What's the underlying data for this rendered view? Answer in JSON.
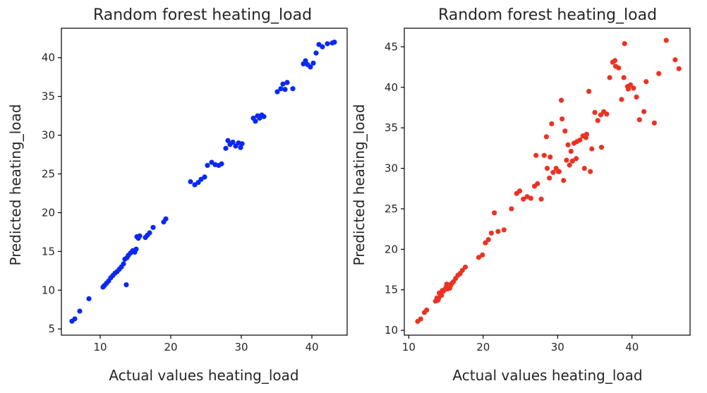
{
  "colors": {
    "left_points": "#0a28f5",
    "right_points": "#ea3323",
    "text": "#262626"
  },
  "chart_data": [
    {
      "type": "scatter",
      "title": "Random forest heating_load",
      "xlabel": "Actual values heating_load",
      "ylabel": "Predicted heating_load",
      "xlim": [
        4.5,
        45
      ],
      "ylim": [
        4.2,
        43.8
      ],
      "xticks": [
        10,
        20,
        30,
        40
      ],
      "yticks": [
        5,
        10,
        15,
        20,
        25,
        30,
        35,
        40
      ],
      "xtick_labels": [
        "10",
        "20",
        "30",
        "40"
      ],
      "ytick_labels": [
        "5",
        "10",
        "15",
        "20",
        "25",
        "30",
        "35",
        "40"
      ],
      "grid": false,
      "series": [
        {
          "color": "#0a28f5",
          "x": [
            6.0,
            6.4,
            7.1,
            8.4,
            10.4,
            10.6,
            10.9,
            11.2,
            11.5,
            11.8,
            12.1,
            12.4,
            12.7,
            13.0,
            13.3,
            13.5,
            13.8,
            14.0,
            14.3,
            14.6,
            14.9,
            15.1,
            15.4,
            15.6,
            15.2,
            16.4,
            16.7,
            17.0,
            17.5,
            19.0,
            19.3,
            13.7,
            22.8,
            23.4,
            23.9,
            24.3,
            24.8,
            25.2,
            25.8,
            26.3,
            26.8,
            27.2,
            27.8,
            28.1,
            28.4,
            28.8,
            29.2,
            29.6,
            29.9,
            30.1,
            31.7,
            32.0,
            32.3,
            32.6,
            32.9,
            33.2,
            35.1,
            35.6,
            35.9,
            36.2,
            36.5,
            37.3,
            38.8,
            39.1,
            39.4,
            39.8,
            40.2,
            40.6,
            41.0,
            41.5,
            42.2,
            42.9,
            43.2
          ],
          "y": [
            6.0,
            6.3,
            7.3,
            8.9,
            10.4,
            10.6,
            10.9,
            11.2,
            11.6,
            11.9,
            12.2,
            12.4,
            12.7,
            13.0,
            13.4,
            14.0,
            14.2,
            14.5,
            14.8,
            15.1,
            14.9,
            15.3,
            16.7,
            17.0,
            16.9,
            16.8,
            17.1,
            17.4,
            18.1,
            18.8,
            19.2,
            10.7,
            24.0,
            23.6,
            23.9,
            24.3,
            24.6,
            26.1,
            26.5,
            26.2,
            26.1,
            26.3,
            28.3,
            29.3,
            28.8,
            29.1,
            28.6,
            29.0,
            28.4,
            28.9,
            32.2,
            31.8,
            32.5,
            32.2,
            32.6,
            32.4,
            35.6,
            36.0,
            36.6,
            35.9,
            36.8,
            36.0,
            39.2,
            39.6,
            39.1,
            38.8,
            39.3,
            40.6,
            41.7,
            41.4,
            41.8,
            41.9,
            42.0
          ]
        }
      ]
    },
    {
      "type": "scatter",
      "title": "Random forest heating_load",
      "xlabel": "Actual values heating_load",
      "ylabel": "Predicted heating_load",
      "xlim": [
        9.4,
        47.8
      ],
      "ylim": [
        9.4,
        47.3
      ],
      "xticks": [
        10,
        20,
        30,
        40
      ],
      "yticks": [
        10,
        15,
        20,
        25,
        30,
        35,
        40,
        45
      ],
      "xtick_labels": [
        "10",
        "20",
        "30",
        "40"
      ],
      "ytick_labels": [
        "10",
        "15",
        "20",
        "25",
        "30",
        "35",
        "40",
        "45"
      ],
      "grid": false,
      "series": [
        {
          "color": "#ea3323",
          "x": [
            11.2,
            11.6,
            12.1,
            12.4,
            13.6,
            13.8,
            14.0,
            14.2,
            14.4,
            14.6,
            14.8,
            15.0,
            15.2,
            15.4,
            15.6,
            15.8,
            16.0,
            16.3,
            16.6,
            16.9,
            17.2,
            17.6,
            14.1,
            14.5,
            15.1,
            15.5,
            13.9,
            19.4,
            19.9,
            20.3,
            20.7,
            21.1,
            21.5,
            22.0,
            22.8,
            23.8,
            24.5,
            24.9,
            25.4,
            25.9,
            26.4,
            26.9,
            27.3,
            27.8,
            28.2,
            28.6,
            29.0,
            29.4,
            29.8,
            30.2,
            30.6,
            31.0,
            31.4,
            31.8,
            32.2,
            32.6,
            33.0,
            33.4,
            33.8,
            34.2,
            34.6,
            35.0,
            35.4,
            35.8,
            36.2,
            36.6,
            37.0,
            37.4,
            37.8,
            38.2,
            38.6,
            39.0,
            39.4,
            39.8,
            40.2,
            40.6,
            41.0,
            41.6,
            43.0,
            43.6,
            44.6,
            45.8,
            46.3,
            28.5,
            29.2,
            30.1,
            31.2,
            32.5,
            33.6,
            34.4,
            27.1,
            28.9,
            30.5,
            32.0,
            33.9,
            37.7,
            38.9,
            39.5,
            41.9,
            30.8,
            31.6,
            35.9
          ],
          "y": [
            11.1,
            11.4,
            12.2,
            12.5,
            13.6,
            14.0,
            13.9,
            14.5,
            14.3,
            14.8,
            15.0,
            15.3,
            15.1,
            15.6,
            15.5,
            15.8,
            16.0,
            16.4,
            16.8,
            17.0,
            17.4,
            17.8,
            14.6,
            14.9,
            15.7,
            15.2,
            13.7,
            19.0,
            19.3,
            20.8,
            21.2,
            22.0,
            24.5,
            22.2,
            22.4,
            25.0,
            26.9,
            27.2,
            26.2,
            26.5,
            26.3,
            27.8,
            28.1,
            26.2,
            31.6,
            30.0,
            31.4,
            29.5,
            30.0,
            29.6,
            36.1,
            34.6,
            32.9,
            32.1,
            33.1,
            33.3,
            33.5,
            34.0,
            33.8,
            39.5,
            32.4,
            36.9,
            35.9,
            36.6,
            37.0,
            36.7,
            41.2,
            43.1,
            42.6,
            42.4,
            38.5,
            45.4,
            40.1,
            40.3,
            39.9,
            38.8,
            36.0,
            37.0,
            35.6,
            41.7,
            45.8,
            43.4,
            42.3,
            33.9,
            35.5,
            29.6,
            31.0,
            31.2,
            30.0,
            29.6,
            31.6,
            28.8,
            38.4,
            30.9,
            34.2,
            43.3,
            41.2,
            39.8,
            40.7,
            28.5,
            30.4,
            32.6
          ]
        }
      ]
    }
  ]
}
